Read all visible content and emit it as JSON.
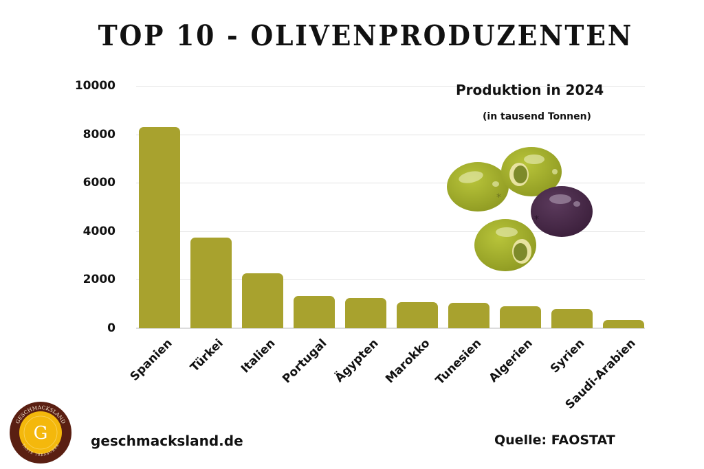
{
  "header": {
    "title": "TOP 10 - OLIVENPRODUZENTEN"
  },
  "annotation": {
    "title": "Produktion in 2024",
    "subtitle": "(in tausend Tonnen)"
  },
  "illustration": {
    "icon": "olives-illustration",
    "colors": {
      "green_olive": "#a9b52d",
      "black_olive": "#4a2a4a",
      "pimento_pit": "#7d8a2a"
    }
  },
  "footer": {
    "logo_text_top": "GESCHMACKSLAND",
    "logo_letter": "G",
    "logo_text_bottom": "TASTE TREASURES",
    "logo_colors": {
      "ring": "#5a1f12",
      "center": "#f4b80c"
    },
    "website": "geschmacksland.de",
    "source": "Quelle: FAOSTAT"
  },
  "style": {
    "bar_color": "#a8a22e",
    "grid_color": "#e2e2e2"
  },
  "chart_data": {
    "type": "bar",
    "title": "TOP 10 - OLIVENPRODUZENTEN",
    "subtitle": "Produktion in 2024 (in tausend Tonnen)",
    "xlabel": "",
    "ylabel": "",
    "categories": [
      "Spanien",
      "Türkei",
      "Italien",
      "Portugal",
      "Ägypten",
      "Marokko",
      "Tunesien",
      "Algerien",
      "Syrien",
      "Saudi-Arabien"
    ],
    "values": [
      8300,
      3750,
      2280,
      1340,
      1260,
      1070,
      1050,
      920,
      780,
      330
    ],
    "ylim": [
      0,
      10000
    ],
    "yticks": [
      0,
      2000,
      4000,
      6000,
      8000,
      10000
    ],
    "grid": true,
    "legend": "none",
    "source": "FAOSTAT"
  }
}
